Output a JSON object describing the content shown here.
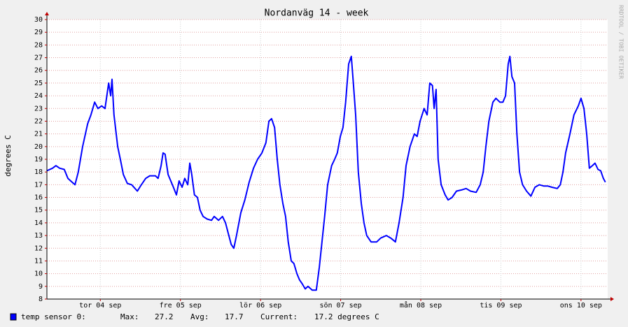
{
  "chart_data": {
    "type": "line",
    "title": "Nordanväg 14 - week",
    "y_label": "degrees C",
    "watermark": "RRDTOOL / TOBI OETIKER",
    "x": [
      -4.0,
      -2.3,
      -1.3,
      -0.2,
      1.2,
      2.3,
      3.1,
      4.4,
      5.4,
      6.7,
      8.2,
      9.2,
      10.3,
      11.3,
      12.4,
      13.4,
      14.5,
      15.1,
      15.5,
      16.1,
      17.2,
      18.0,
      18.9,
      20.1,
      21.4,
      23.1,
      24.3,
      25.6,
      26.8,
      28.5,
      29.3,
      30.2,
      30.8,
      31.4,
      32.3,
      33.1,
      33.9,
      34.8,
      35.6,
      36.5,
      37.3,
      38.2,
      38.8,
      39.4,
      40.2,
      41.1,
      41.9,
      42.8,
      44.0,
      45.3,
      46.1,
      47.4,
      48.6,
      49.5,
      50.3,
      51.2,
      52.0,
      52.8,
      54.1,
      55.3,
      56.6,
      57.9,
      59.1,
      60.4,
      61.6,
      62.5,
      63.3,
      64.2,
      65.0,
      65.8,
      66.7,
      67.5,
      68.3,
      69.2,
      70.0,
      70.9,
      71.7,
      72.5,
      73.4,
      74.2,
      75.5,
      76.7,
      77.6,
      78.4,
      79.2,
      80.1,
      81.3,
      82.2,
      83.0,
      83.9,
      84.7,
      85.5,
      86.4,
      87.2,
      87.8,
      88.5,
      89.3,
      90.2,
      91.0,
      91.8,
      93.1,
      94.8,
      96.0,
      97.7,
      99.0,
      100.4,
      101.5,
      102.7,
      103.6,
      104.8,
      106.1,
      106.9,
      107.8,
      109.0,
      109.9,
      110.7,
      111.5,
      112.0,
      112.6,
      113.2,
      114.1,
      115.3,
      116.2,
      117.4,
      118.7,
      120.4,
      121.6,
      122.9,
      124.6,
      125.8,
      126.7,
      127.5,
      128.4,
      129.6,
      130.5,
      131.7,
      132.6,
      133.4,
      134.2,
      134.7,
      135.3,
      136.1,
      136.8,
      137.6,
      138.5,
      139.7,
      141.0,
      142.2,
      143.5,
      144.8,
      146.0,
      147.3,
      148.9,
      149.8,
      150.6,
      151.4,
      152.7,
      153.9,
      155.2,
      156.0,
      156.9,
      157.7,
      158.5,
      159.4,
      160.2,
      161.1,
      161.9,
      162.7,
      163.3
    ],
    "series": [
      {
        "name": "temp sensor 0:",
        "color": "#0000ff",
        "values": [
          18.1,
          18.3,
          18.5,
          18.3,
          18.2,
          17.5,
          17.3,
          17.0,
          18.0,
          20.0,
          21.8,
          22.5,
          23.5,
          23.0,
          23.2,
          23.0,
          25.0,
          24.0,
          25.3,
          22.5,
          20.0,
          19.0,
          17.8,
          17.1,
          17.0,
          16.5,
          17.0,
          17.5,
          17.7,
          17.7,
          17.5,
          18.5,
          19.5,
          19.4,
          17.8,
          17.3,
          16.8,
          16.2,
          17.3,
          16.8,
          17.5,
          17.0,
          18.7,
          17.8,
          16.2,
          16.0,
          15.0,
          14.5,
          14.3,
          14.2,
          14.5,
          14.2,
          14.5,
          14.0,
          13.2,
          12.3,
          12.0,
          13.0,
          14.8,
          15.8,
          17.2,
          18.3,
          19.0,
          19.5,
          20.3,
          22.0,
          22.2,
          21.5,
          19.0,
          17.0,
          15.5,
          14.5,
          12.5,
          11.0,
          10.8,
          10.0,
          9.5,
          9.2,
          8.8,
          9.0,
          8.7,
          8.7,
          10.5,
          12.5,
          14.5,
          17.0,
          18.5,
          19.0,
          19.5,
          20.8,
          21.5,
          23.5,
          26.5,
          27.1,
          25.0,
          22.5,
          18.0,
          15.5,
          14.0,
          13.0,
          12.5,
          12.5,
          12.8,
          13.0,
          12.8,
          12.5,
          14.0,
          16.0,
          18.5,
          20.0,
          21.0,
          20.8,
          22.0,
          23.0,
          22.5,
          25.0,
          24.8,
          23.0,
          24.5,
          19.0,
          17.0,
          16.2,
          15.8,
          16.0,
          16.5,
          16.6,
          16.7,
          16.5,
          16.4,
          17.0,
          18.0,
          20.0,
          22.0,
          23.5,
          23.8,
          23.5,
          23.5,
          24.0,
          26.5,
          27.1,
          25.5,
          25.0,
          21.0,
          18.0,
          17.0,
          16.5,
          16.1,
          16.8,
          17.0,
          16.9,
          16.9,
          16.8,
          16.7,
          17.0,
          18.0,
          19.5,
          21.0,
          22.5,
          23.2,
          23.8,
          23.0,
          21.0,
          18.3,
          18.5,
          18.7,
          18.2,
          18.1,
          17.5,
          17.2
        ]
      }
    ],
    "xlim": [
      -4,
      164
    ],
    "xticks": [
      {
        "value": 12,
        "label": "tor 04 sep"
      },
      {
        "value": 36,
        "label": "fre 05 sep"
      },
      {
        "value": 60,
        "label": "lör 06 sep"
      },
      {
        "value": 84,
        "label": "sön 07 sep"
      },
      {
        "value": 108,
        "label": "mån 08 sep"
      },
      {
        "value": 132,
        "label": "tis 09 sep"
      },
      {
        "value": 156,
        "label": "ons 10 sep"
      }
    ],
    "ylim": [
      8,
      30
    ],
    "yticks": [
      8,
      9,
      10,
      11,
      12,
      13,
      14,
      15,
      16,
      17,
      18,
      19,
      20,
      21,
      22,
      23,
      24,
      25,
      26,
      27,
      28,
      29,
      30
    ],
    "grid": true,
    "legend_stats": {
      "max_label": "Max:",
      "max": "27.2",
      "avg_label": "Avg:",
      "avg": "17.7",
      "current_label": "Current:",
      "current": "17.2 degrees C"
    }
  }
}
